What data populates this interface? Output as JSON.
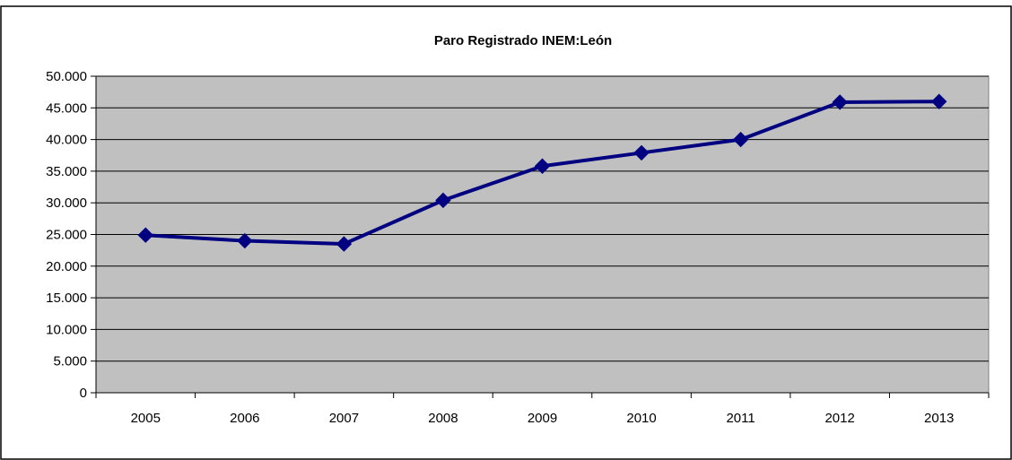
{
  "chart_data": {
    "type": "line",
    "title": "Paro Registrado INEM:León",
    "xlabel": "",
    "ylabel": "",
    "categories": [
      "2005",
      "2006",
      "2007",
      "2008",
      "2009",
      "2010",
      "2011",
      "2012",
      "2013"
    ],
    "series": [
      {
        "color": "#000080",
        "marker": "diamond",
        "values": [
          24900,
          24000,
          23500,
          30400,
          35800,
          37900,
          40000,
          45900,
          46000
        ]
      }
    ],
    "ylim": [
      0,
      50000
    ],
    "yticks": [
      0,
      5000,
      10000,
      15000,
      20000,
      25000,
      30000,
      35000,
      40000,
      45000,
      50000
    ],
    "ytick_labels": [
      "0",
      "5.000",
      "10.000",
      "15.000",
      "20.000",
      "25.000",
      "30.000",
      "35.000",
      "40.000",
      "45.000",
      "50.000"
    ],
    "grid": true,
    "legend": "none",
    "plot_background": "#c0c0c0"
  }
}
